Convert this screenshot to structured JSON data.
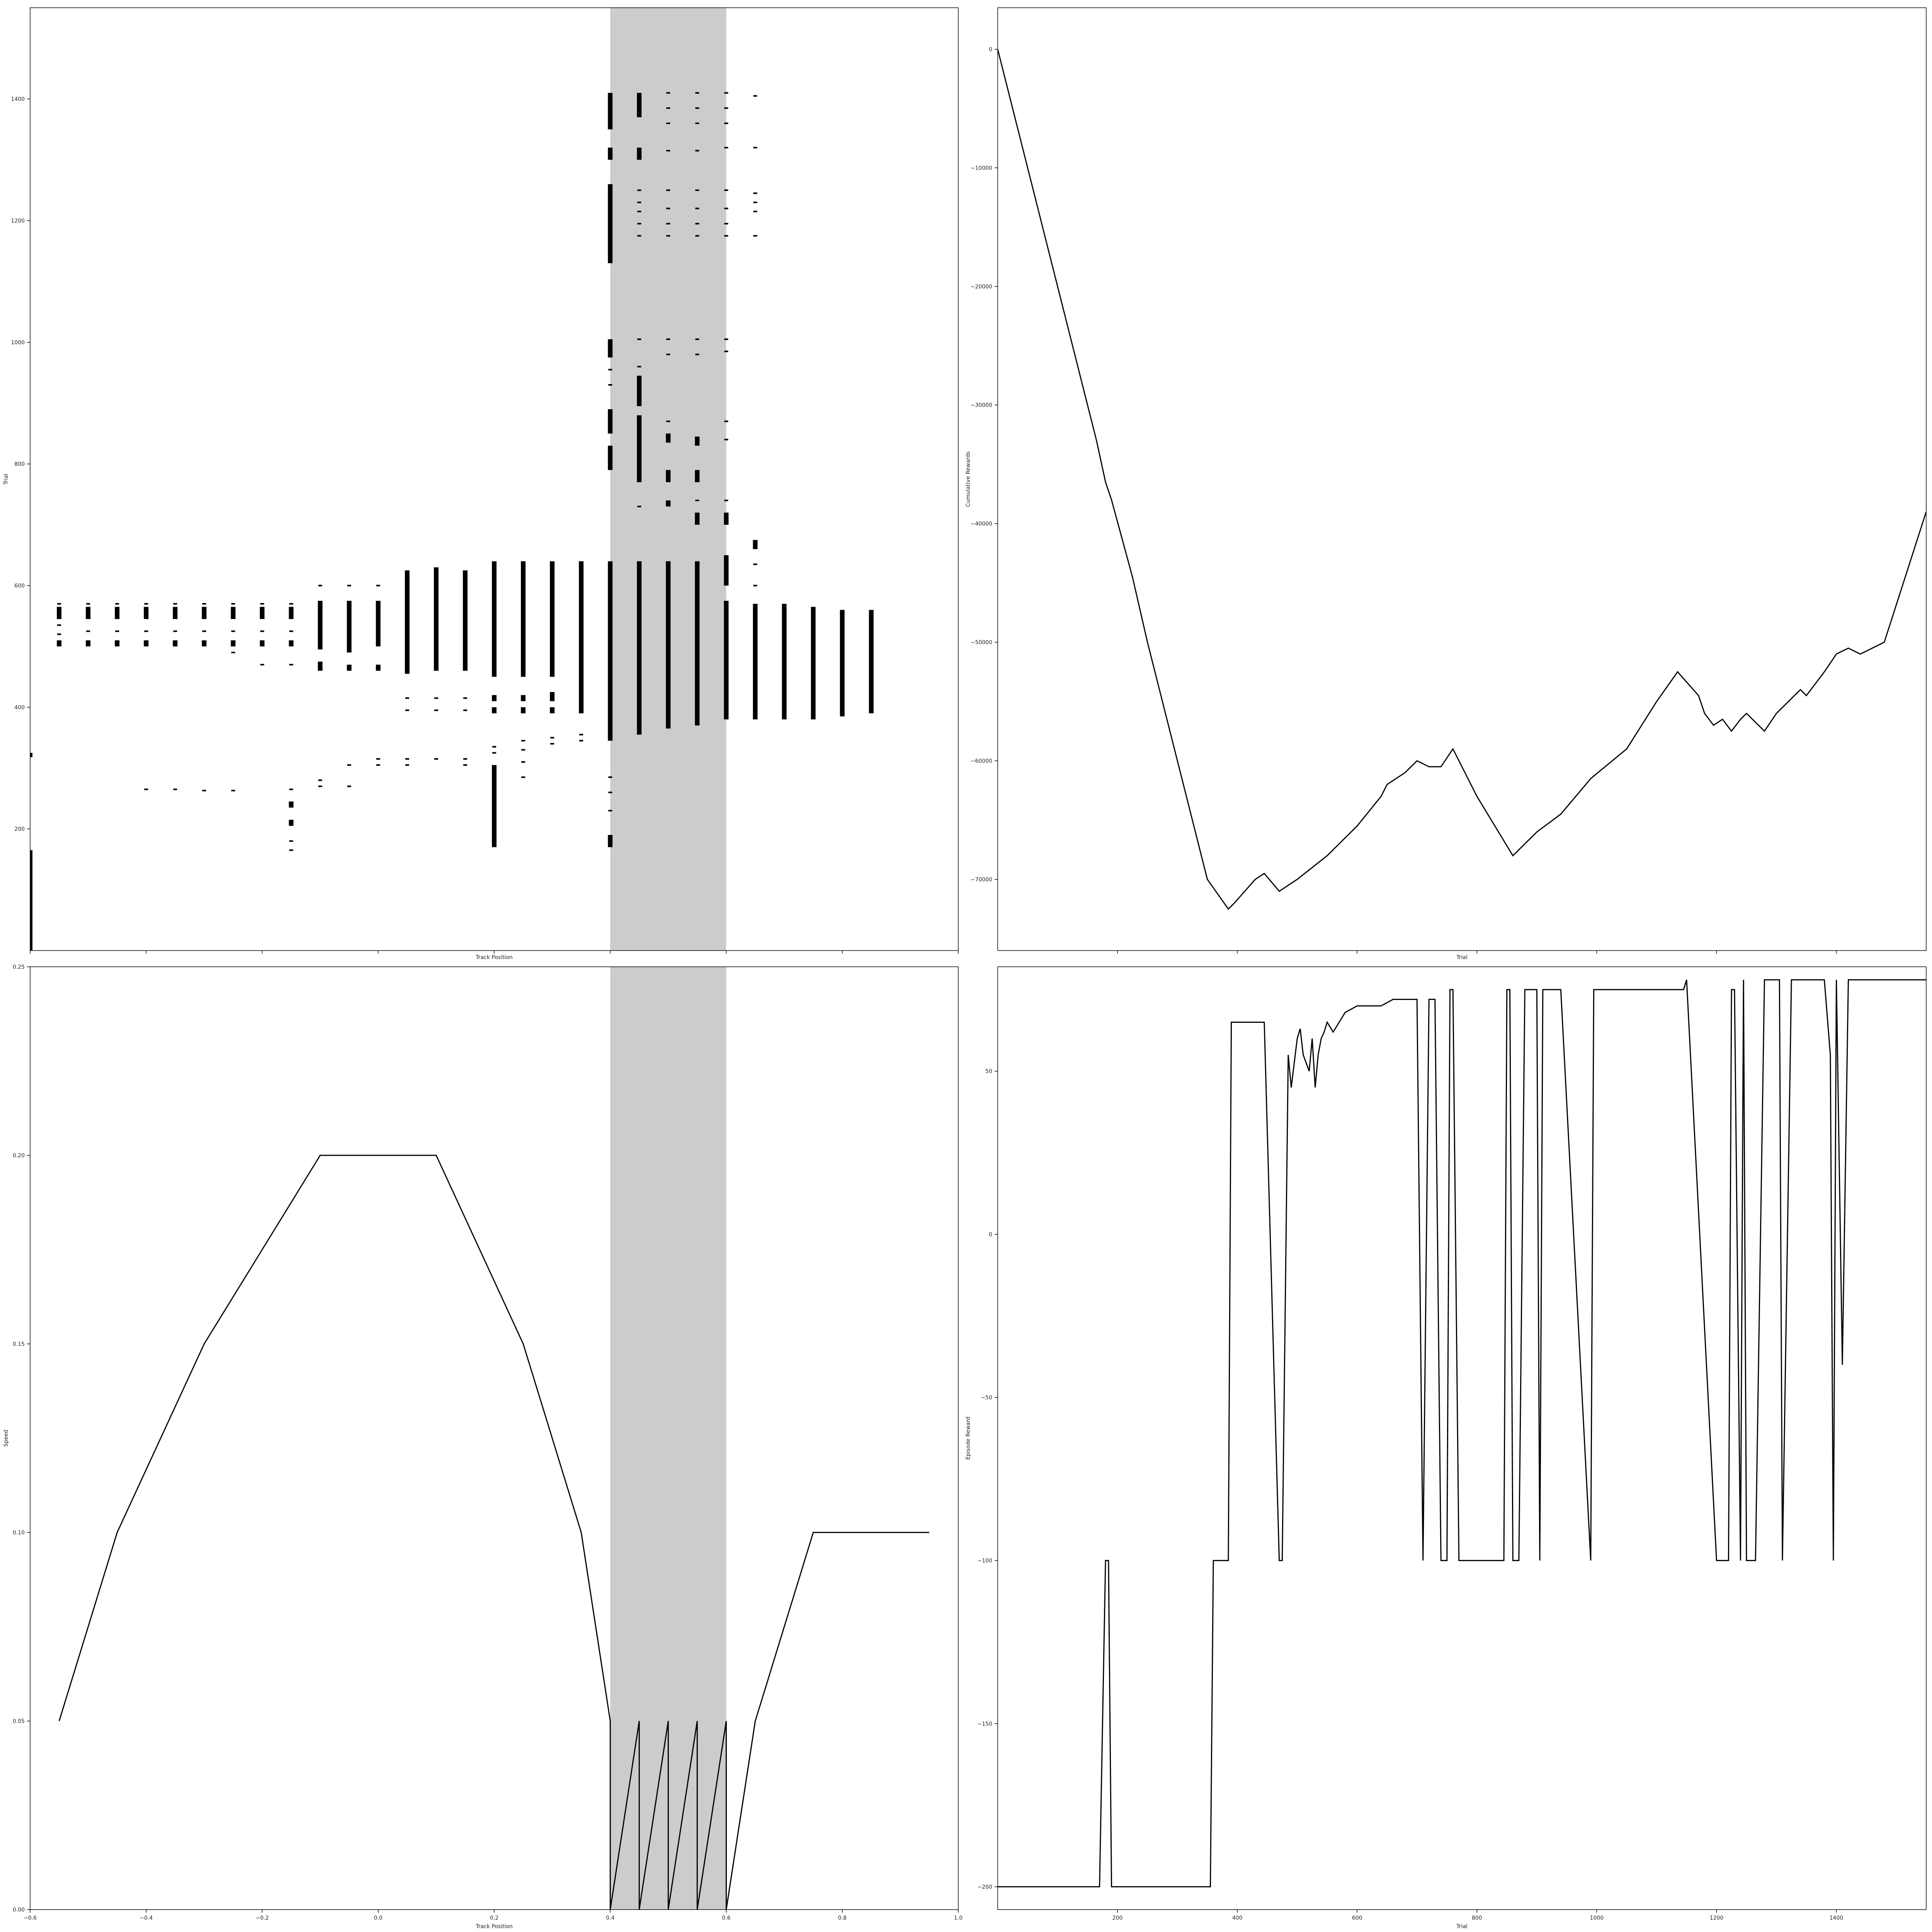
{
  "chart_data": [
    {
      "id": "track-trial",
      "type": "scatter",
      "xlabel": "Track Position",
      "ylabel": "Trial",
      "xlim": [
        -0.6,
        1.0
      ],
      "ylim": [
        0,
        1550
      ],
      "x_ticks": [
        -0.6,
        -0.4,
        -0.2,
        0.0,
        0.2,
        0.4,
        0.6,
        0.8,
        1.0
      ],
      "x_tick_labels": [
        "",
        "",
        "",
        "",
        "",
        "",
        "",
        "",
        ""
      ],
      "y_ticks": [
        200,
        400,
        600,
        800,
        1000,
        1200,
        1400
      ],
      "y_tick_labels": [
        "200",
        "400",
        "600",
        "800",
        "1000",
        "1200",
        "1400"
      ],
      "shaded_region": [
        0.4,
        0.6
      ],
      "marker_color": "#000000",
      "shade_color": "#cccccc",
      "columns": [
        {
          "x": -0.6,
          "ranges": [
            [
              0,
              165
            ],
            [
              318,
              325
            ]
          ],
          "points": []
        },
        {
          "x": -0.55,
          "ranges": [
            [
              500,
              510
            ],
            [
              545,
              565
            ]
          ],
          "points": [
            520,
            535,
            570
          ]
        },
        {
          "x": -0.5,
          "ranges": [
            [
              500,
              510
            ],
            [
              545,
              565
            ]
          ],
          "points": [
            525,
            570
          ]
        },
        {
          "x": -0.45,
          "ranges": [
            [
              500,
              510
            ],
            [
              545,
              565
            ]
          ],
          "points": [
            525,
            570
          ]
        },
        {
          "x": -0.4,
          "ranges": [
            [
              500,
              510
            ],
            [
              545,
              565
            ]
          ],
          "points": [
            265,
            525,
            570
          ]
        },
        {
          "x": -0.35,
          "ranges": [
            [
              500,
              510
            ],
            [
              545,
              565
            ]
          ],
          "points": [
            265,
            525,
            570
          ]
        },
        {
          "x": -0.3,
          "ranges": [
            [
              500,
              510
            ],
            [
              545,
              565
            ]
          ],
          "points": [
            263,
            525,
            570
          ]
        },
        {
          "x": -0.25,
          "ranges": [
            [
              500,
              510
            ],
            [
              545,
              565
            ]
          ],
          "points": [
            263,
            490,
            525,
            570
          ]
        },
        {
          "x": -0.2,
          "ranges": [
            [
              500,
              510
            ],
            [
              545,
              565
            ]
          ],
          "points": [
            470,
            525,
            570
          ]
        },
        {
          "x": -0.15,
          "ranges": [
            [
              500,
              510
            ],
            [
              545,
              565
            ],
            [
              235,
              245
            ],
            [
              205,
              215
            ]
          ],
          "points": [
            165,
            180,
            265,
            470,
            525,
            570
          ]
        },
        {
          "x": -0.1,
          "ranges": [
            [
              460,
              475
            ],
            [
              495,
              575
            ]
          ],
          "points": [
            270,
            280,
            600
          ]
        },
        {
          "x": -0.05,
          "ranges": [
            [
              460,
              470
            ],
            [
              490,
              575
            ]
          ],
          "points": [
            270,
            305,
            600
          ]
        },
        {
          "x": 0.0,
          "ranges": [
            [
              460,
              470
            ],
            [
              500,
              575
            ]
          ],
          "points": [
            305,
            315,
            600
          ]
        },
        {
          "x": 0.05,
          "ranges": [
            [
              455,
              625
            ]
          ],
          "points": [
            305,
            315,
            395,
            415
          ]
        },
        {
          "x": 0.1,
          "ranges": [
            [
              460,
              630
            ]
          ],
          "points": [
            315,
            395,
            415
          ]
        },
        {
          "x": 0.15,
          "ranges": [
            [
              460,
              625
            ]
          ],
          "points": [
            305,
            315,
            395,
            415
          ]
        },
        {
          "x": 0.2,
          "ranges": [
            [
              450,
              640
            ],
            [
              170,
              305
            ],
            [
              390,
              400
            ],
            [
              410,
              420
            ]
          ],
          "points": [
            325,
            335
          ]
        },
        {
          "x": 0.25,
          "ranges": [
            [
              450,
              640
            ],
            [
              390,
              400
            ],
            [
              410,
              420
            ]
          ],
          "points": [
            285,
            310,
            330,
            345
          ]
        },
        {
          "x": 0.3,
          "ranges": [
            [
              450,
              640
            ],
            [
              390,
              400
            ],
            [
              410,
              425
            ]
          ],
          "points": [
            340,
            350
          ]
        },
        {
          "x": 0.35,
          "ranges": [
            [
              390,
              640
            ]
          ],
          "points": [
            345,
            355
          ]
        },
        {
          "x": 0.4,
          "ranges": [
            [
              345,
              640
            ],
            [
              790,
              830
            ],
            [
              850,
              890
            ],
            [
              975,
              1005
            ],
            [
              1130,
              1260
            ],
            [
              1300,
              1320
            ],
            [
              1350,
              1410
            ],
            [
              170,
              190
            ]
          ],
          "points": [
            230,
            260,
            285,
            930,
            955
          ]
        },
        {
          "x": 0.45,
          "ranges": [
            [
              355,
              640
            ],
            [
              770,
              880
            ],
            [
              895,
              945
            ],
            [
              1300,
              1320
            ],
            [
              1370,
              1410
            ]
          ],
          "points": [
            730,
            960,
            1005,
            1175,
            1195,
            1215,
            1230,
            1250
          ]
        },
        {
          "x": 0.5,
          "ranges": [
            [
              365,
              640
            ],
            [
              730,
              740
            ],
            [
              770,
              790
            ],
            [
              835,
              850
            ]
          ],
          "points": [
            870,
            980,
            1005,
            1175,
            1195,
            1220,
            1250,
            1315,
            1360,
            1385,
            1410
          ]
        },
        {
          "x": 0.55,
          "ranges": [
            [
              370,
              640
            ],
            [
              700,
              720
            ],
            [
              770,
              790
            ],
            [
              830,
              845
            ]
          ],
          "points": [
            740,
            980,
            1005,
            1175,
            1195,
            1220,
            1250,
            1315,
            1360,
            1385,
            1410
          ]
        },
        {
          "x": 0.6,
          "ranges": [
            [
              380,
              575
            ],
            [
              600,
              650
            ],
            [
              700,
              720
            ]
          ],
          "points": [
            740,
            840,
            870,
            985,
            1005,
            1175,
            1195,
            1220,
            1250,
            1320,
            1360,
            1385,
            1410
          ]
        },
        {
          "x": 0.65,
          "ranges": [
            [
              380,
              570
            ],
            [
              660,
              675
            ]
          ],
          "points": [
            600,
            635,
            1175,
            1215,
            1230,
            1245,
            1320,
            1405
          ]
        },
        {
          "x": 0.7,
          "ranges": [
            [
              380,
              570
            ]
          ],
          "points": []
        },
        {
          "x": 0.75,
          "ranges": [
            [
              380,
              565
            ]
          ],
          "points": []
        },
        {
          "x": 0.8,
          "ranges": [
            [
              385,
              560
            ]
          ],
          "points": []
        },
        {
          "x": 0.85,
          "ranges": [
            [
              390,
              560
            ]
          ],
          "points": []
        }
      ]
    },
    {
      "id": "cumulative-rewards",
      "type": "line",
      "xlabel": "Trial",
      "ylabel": "Cumulative Rewards",
      "xlim": [
        0,
        1550
      ],
      "ylim": [
        -76000,
        3500
      ],
      "x_ticks": [
        200,
        400,
        600,
        800,
        1000,
        1200,
        1400
      ],
      "x_tick_labels": [
        "",
        "",
        "",
        "",
        "",
        "",
        ""
      ],
      "y_ticks": [
        -70000,
        -60000,
        -50000,
        -40000,
        -30000,
        -20000,
        -10000,
        0
      ],
      "y_tick_labels": [
        "−70000",
        "−60000",
        "−50000",
        "−40000",
        "−30000",
        "−20000",
        "−10000",
        "0"
      ],
      "line_color": "#000000",
      "x": [
        0,
        100,
        165,
        180,
        190,
        225,
        250,
        300,
        350,
        385,
        395,
        430,
        445,
        470,
        500,
        550,
        600,
        640,
        650,
        680,
        700,
        720,
        740,
        760,
        800,
        830,
        860,
        900,
        940,
        990,
        1050,
        1100,
        1135,
        1170,
        1180,
        1195,
        1210,
        1225,
        1240,
        1250,
        1280,
        1300,
        1340,
        1350,
        1365,
        1380,
        1400,
        1420,
        1440,
        1480,
        1550
      ],
      "y": [
        0,
        -20000,
        -33000,
        -36500,
        -38000,
        -44500,
        -50000,
        -60000,
        -70000,
        -72500,
        -72000,
        -70000,
        -69500,
        -71000,
        -70000,
        -68000,
        -65500,
        -63000,
        -62000,
        -61000,
        -60000,
        -60500,
        -60500,
        -59000,
        -63000,
        -65500,
        -68000,
        -66000,
        -64500,
        -61500,
        -59000,
        -55000,
        -52500,
        -54500,
        -56000,
        -57000,
        -56500,
        -57500,
        -56500,
        -56000,
        -57500,
        -56000,
        -54000,
        -54500,
        -53500,
        -52500,
        -51000,
        -50500,
        -51000,
        -50000,
        -39000
      ]
    },
    {
      "id": "speed",
      "type": "line",
      "xlabel": "Track Position",
      "ylabel": "Speed",
      "xlim": [
        -0.6,
        1.0
      ],
      "ylim": [
        0.0,
        0.25
      ],
      "x_ticks": [
        -0.6,
        -0.4,
        -0.2,
        0.0,
        0.2,
        0.4,
        0.6,
        0.8,
        1.0
      ],
      "x_tick_labels": [
        "−0.6",
        "−0.4",
        "−0.2",
        "0.0",
        "0.2",
        "0.4",
        "0.6",
        "0.8",
        "1.0"
      ],
      "y_ticks": [
        0.0,
        0.05,
        0.1,
        0.15,
        0.2,
        0.25
      ],
      "y_tick_labels": [
        "0.00",
        "0.05",
        "0.10",
        "0.15",
        "0.20",
        "0.25"
      ],
      "shaded_region": [
        0.4,
        0.6
      ],
      "line_color": "#000000",
      "shade_color": "#cccccc",
      "x": [
        -0.55,
        -0.45,
        -0.3,
        -0.1,
        0.1,
        0.25,
        0.35,
        0.4,
        0.4,
        0.45,
        0.45,
        0.5,
        0.5,
        0.55,
        0.55,
        0.6,
        0.6,
        0.65,
        0.75,
        0.95
      ],
      "y": [
        0.05,
        0.1,
        0.15,
        0.2,
        0.2,
        0.15,
        0.1,
        0.05,
        0.0,
        0.05,
        0.0,
        0.05,
        0.0,
        0.05,
        0.0,
        0.05,
        0.0,
        0.05,
        0.1,
        0.1
      ]
    },
    {
      "id": "episode-reward",
      "type": "line",
      "xlabel": "Trial",
      "ylabel": "Episode Reward",
      "xlim": [
        0,
        1550
      ],
      "ylim": [
        -207,
        82
      ],
      "x_ticks": [
        200,
        400,
        600,
        800,
        1000,
        1200,
        1400
      ],
      "x_tick_labels": [
        "200",
        "400",
        "600",
        "800",
        "1000",
        "1200",
        "1400"
      ],
      "y_ticks": [
        -200,
        -150,
        -100,
        -50,
        0,
        50
      ],
      "y_tick_labels": [
        "−200",
        "−150",
        "−100",
        "−50",
        "0",
        "50"
      ],
      "line_color": "#000000",
      "x": [
        0,
        165,
        170,
        180,
        185,
        190,
        350,
        355,
        360,
        380,
        385,
        390,
        395,
        410,
        415,
        425,
        440,
        445,
        470,
        475,
        485,
        490,
        500,
        505,
        510,
        520,
        525,
        530,
        535,
        540,
        545,
        550,
        560,
        580,
        600,
        620,
        640,
        660,
        680,
        700,
        710,
        720,
        730,
        740,
        750,
        755,
        760,
        770,
        780,
        840,
        845,
        850,
        855,
        860,
        870,
        880,
        885,
        900,
        905,
        910,
        930,
        940,
        990,
        995,
        1000,
        1010,
        1020,
        1040,
        1060,
        1080,
        1100,
        1120,
        1140,
        1145,
        1150,
        1200,
        1205,
        1210,
        1220,
        1225,
        1230,
        1240,
        1245,
        1250,
        1265,
        1280,
        1290,
        1300,
        1305,
        1310,
        1325,
        1340,
        1350,
        1370,
        1380,
        1390,
        1395,
        1400,
        1410,
        1420,
        1430,
        1550
      ],
      "y": [
        -200,
        -200,
        -200,
        -100,
        -100,
        -200,
        -200,
        -200,
        -100,
        -100,
        -100,
        65,
        65,
        65,
        65,
        65,
        65,
        65,
        -100,
        -100,
        55,
        45,
        60,
        63,
        55,
        50,
        60,
        45,
        55,
        60,
        62,
        65,
        62,
        68,
        70,
        70,
        70,
        72,
        72,
        72,
        -100,
        72,
        72,
        -100,
        -100,
        75,
        75,
        -100,
        -100,
        -100,
        -100,
        75,
        75,
        -100,
        -100,
        75,
        75,
        75,
        -100,
        75,
        75,
        75,
        -100,
        75,
        75,
        75,
        75,
        75,
        75,
        75,
        75,
        75,
        75,
        75,
        78,
        -100,
        -100,
        -100,
        -100,
        75,
        75,
        -100,
        78,
        -100,
        -100,
        78,
        78,
        78,
        78,
        -100,
        78,
        78,
        78,
        78,
        78,
        55,
        -100,
        78,
        -40,
        78,
        78,
        78
      ]
    }
  ]
}
